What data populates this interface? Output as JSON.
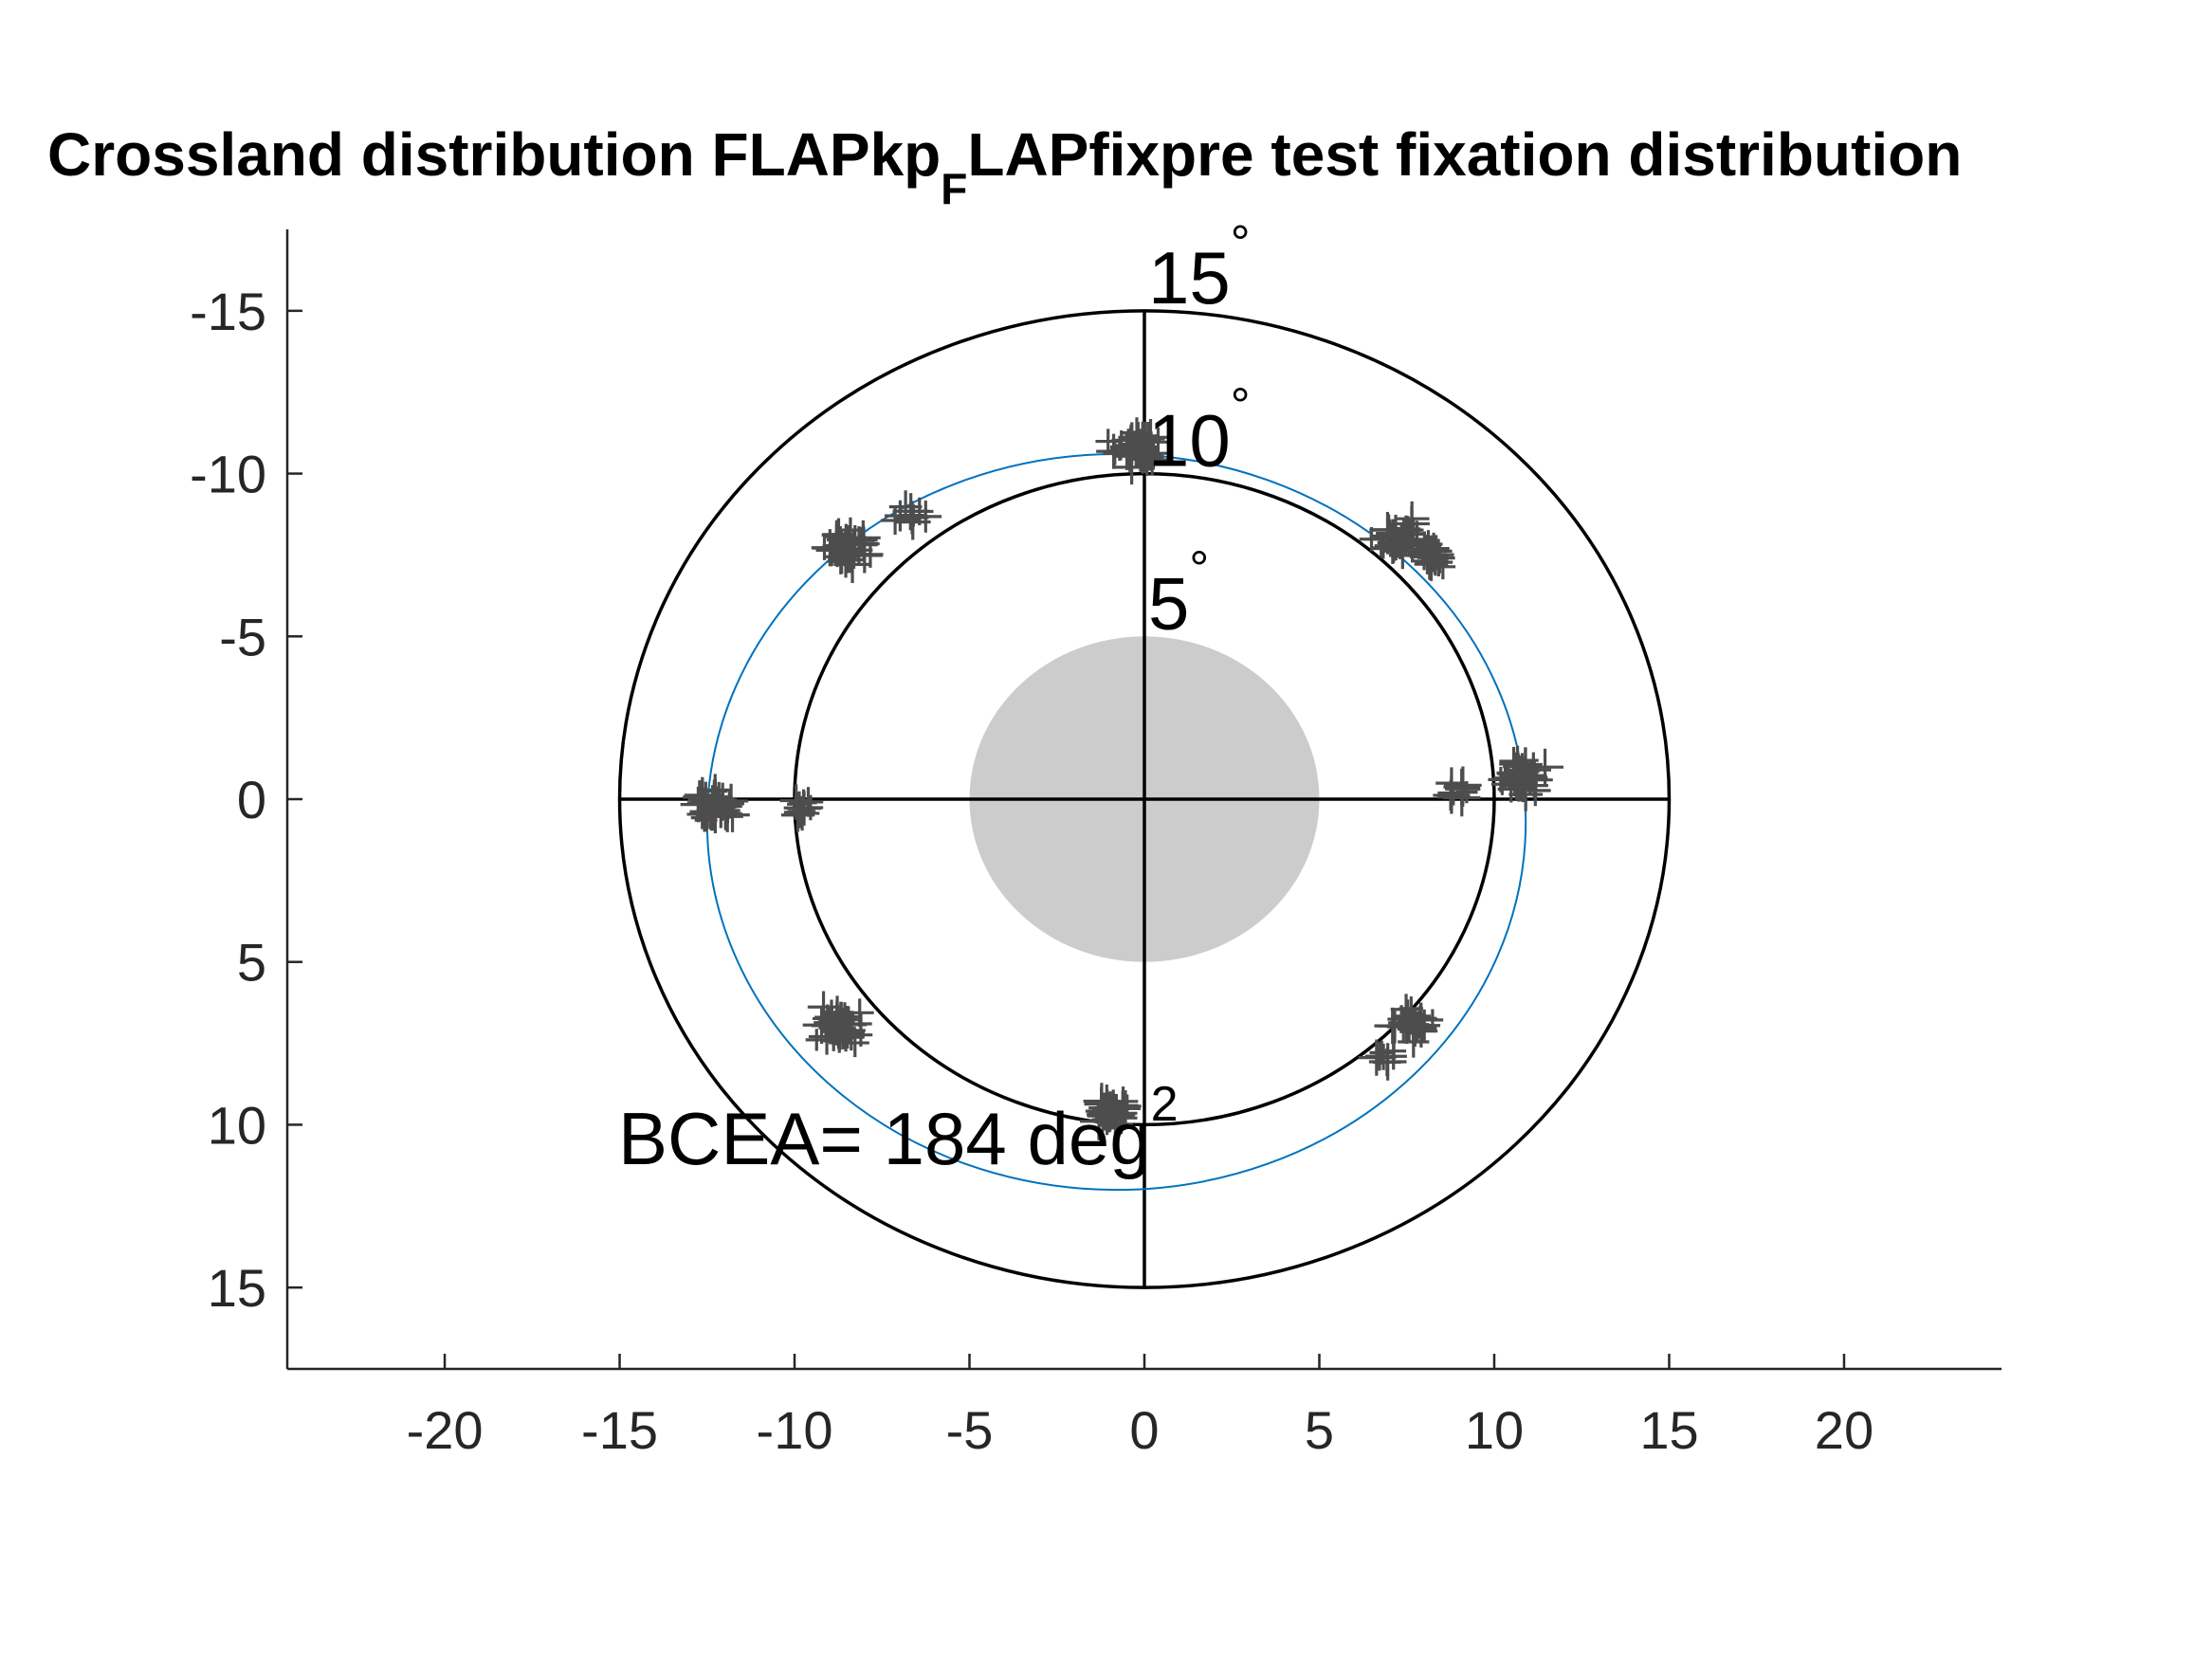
{
  "chart_data": {
    "type": "scatter",
    "title_main": "Crossland distribution FLAPkp",
    "title_subscript": "F",
    "title_rest": "LAPfixpre test fixation distribution",
    "xlim": [
      -24.5,
      24.5
    ],
    "ylim": [
      -17.5,
      17.5
    ],
    "y_reversed": true,
    "x_ticks": [
      -20,
      -15,
      -10,
      -5,
      0,
      5,
      10,
      15,
      20
    ],
    "x_tick_labels": [
      "-20",
      "-15",
      "-10",
      "-5",
      "0",
      "5",
      "10",
      "15",
      "20"
    ],
    "y_ticks": [
      -15,
      -10,
      -5,
      0,
      5,
      10,
      15
    ],
    "y_tick_labels": [
      "-15",
      "-10",
      "-5",
      "0",
      "5",
      "10",
      "15"
    ],
    "grid": false,
    "rings": [
      {
        "radius": 5,
        "label": "5",
        "unit": "°"
      },
      {
        "radius": 10,
        "label": "10",
        "unit": "°"
      },
      {
        "radius": 15,
        "label": "15",
        "unit": "°"
      }
    ],
    "scotoma": {
      "center": [
        0,
        0
      ],
      "radius": 5,
      "color": "#cccccc"
    },
    "bcea_ellipse": {
      "center": [
        -0.8,
        0.7
      ],
      "rx": 11.7,
      "ry": 11.3,
      "color": "#0072bd"
    },
    "bcea_text": "BCEA= 184 deg",
    "bcea_superscript": "2",
    "marker_color": "#4d4d4d",
    "clusters": [
      {
        "x": -0.3,
        "y": -10.7,
        "spread": 0.6,
        "n": 45
      },
      {
        "x": -8.5,
        "y": -7.8,
        "spread": 0.6,
        "n": 40
      },
      {
        "x": -6.6,
        "y": -8.7,
        "spread": 0.3,
        "n": 12
      },
      {
        "x": 7.3,
        "y": -8.0,
        "spread": 0.6,
        "n": 35
      },
      {
        "x": 8.3,
        "y": -7.5,
        "spread": 0.4,
        "n": 22
      },
      {
        "x": -12.2,
        "y": 0.2,
        "spread": 0.5,
        "n": 45
      },
      {
        "x": -9.8,
        "y": 0.2,
        "spread": 0.3,
        "n": 14
      },
      {
        "x": 10.9,
        "y": -0.8,
        "spread": 0.6,
        "n": 36
      },
      {
        "x": 8.9,
        "y": -0.2,
        "spread": 0.3,
        "n": 10
      },
      {
        "x": -8.8,
        "y": 6.9,
        "spread": 0.6,
        "n": 40
      },
      {
        "x": 7.6,
        "y": 6.9,
        "spread": 0.5,
        "n": 28
      },
      {
        "x": 6.9,
        "y": 7.9,
        "spread": 0.3,
        "n": 8
      },
      {
        "x": -0.9,
        "y": 9.6,
        "spread": 0.4,
        "n": 40
      }
    ]
  }
}
